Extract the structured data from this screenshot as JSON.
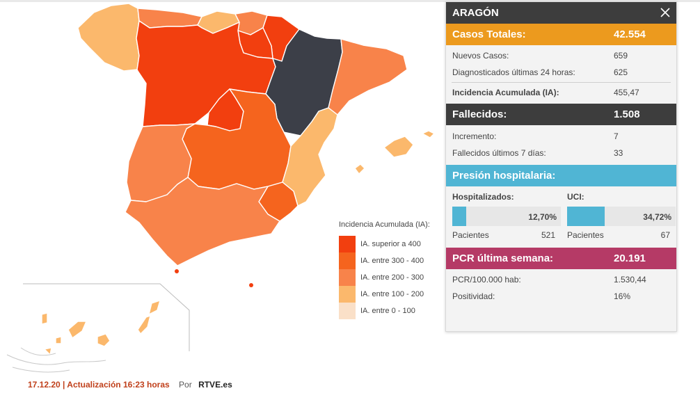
{
  "panel": {
    "title": "ARAGÓN",
    "casos_totales": {
      "label": "Casos Totales:",
      "value": "42.554"
    },
    "nuevos_casos": {
      "label": "Nuevos Casos:",
      "value": "659"
    },
    "diagnosticados": {
      "label": "Diagnosticados últimas 24 horas:",
      "value": "625"
    },
    "incidencia": {
      "label": "Incidencia Acumulada (IA):",
      "value": "455,47"
    },
    "fallecidos": {
      "label": "Fallecidos:",
      "value": "1.508"
    },
    "incremento": {
      "label": "Incremento:",
      "value": "7"
    },
    "fallecidos_7": {
      "label": "Fallecidos últimos 7 días:",
      "value": "33"
    },
    "presion": {
      "label": "Presión hospitalaria:"
    },
    "hospitalizados": {
      "label": "Hospitalizados:",
      "pct": "12,70%",
      "fraction": 0.127,
      "pacientes_label": "Pacientes",
      "pacientes": "521"
    },
    "uci": {
      "label": "UCI:",
      "pct": "34,72%",
      "fraction": 0.3472,
      "pacientes_label": "Pacientes",
      "pacientes": "67"
    },
    "pcr": {
      "label": "PCR última semana:",
      "value": "20.191"
    },
    "pcr_100k": {
      "label": "PCR/100.000 hab:",
      "value": "1.530,44"
    },
    "positividad": {
      "label": "Positividad:",
      "value": "16%"
    }
  },
  "legend": {
    "title": "Incidencia Acumulada (IA):",
    "items": [
      {
        "label": "IA. superior a 400",
        "color": "#f23f0f"
      },
      {
        "label": "IA. entre 300 - 400",
        "color": "#f5641e"
      },
      {
        "label": "IA. entre 200 - 300",
        "color": "#f8834a"
      },
      {
        "label": "IA. entre 100 - 200",
        "color": "#fbb86c"
      },
      {
        "label": "IA. entre 0 - 100",
        "color": "#fae0c8"
      }
    ]
  },
  "footer": {
    "update": "17.12.20 | Actualización 16:23 horas",
    "by": "Por",
    "source": "RTVE.es"
  },
  "colors": {
    "selected_region": "#3c3f48",
    "accent_orange": "#ec9a1e",
    "accent_blue": "#50b5d4",
    "accent_pink": "#b53a66"
  }
}
